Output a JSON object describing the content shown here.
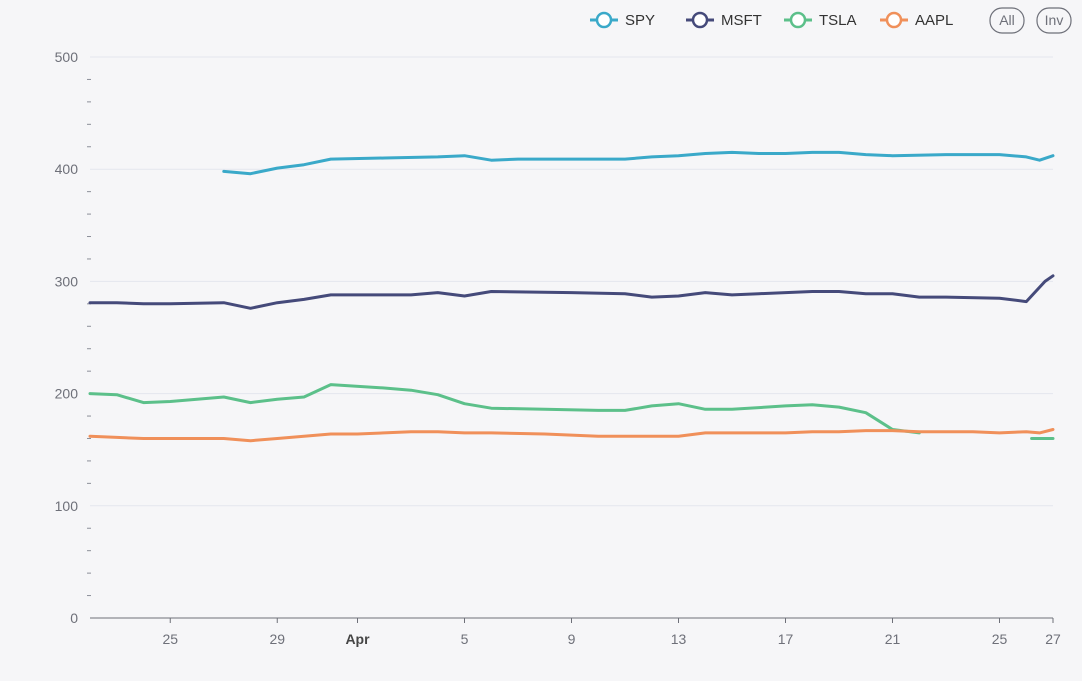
{
  "chart_data": {
    "type": "line",
    "title": "",
    "xlabel": "",
    "ylabel": "",
    "ylim": [
      0,
      500
    ],
    "y_ticks": [
      0,
      100,
      200,
      300,
      400,
      500
    ],
    "x_ticks": [
      {
        "x": 3,
        "label": "25",
        "bold": false
      },
      {
        "x": 7,
        "label": "29",
        "bold": false
      },
      {
        "x": 10,
        "label": "Apr",
        "bold": true
      },
      {
        "x": 14,
        "label": "5",
        "bold": false
      },
      {
        "x": 18,
        "label": "9",
        "bold": false
      },
      {
        "x": 22,
        "label": "13",
        "bold": false
      },
      {
        "x": 26,
        "label": "17",
        "bold": false
      },
      {
        "x": 30,
        "label": "21",
        "bold": false
      },
      {
        "x": 34,
        "label": "25",
        "bold": false
      },
      {
        "x": 36,
        "label": "27",
        "bold": false
      }
    ],
    "xlim": [
      0,
      36
    ],
    "grid": true,
    "legend_position": "top-right",
    "legend_buttons": [
      "All",
      "Inv"
    ],
    "series": [
      {
        "name": "SPY",
        "color": "#3aa9c9",
        "points": [
          [
            5,
            398
          ],
          [
            6,
            396
          ],
          [
            7,
            401
          ],
          [
            8,
            404
          ],
          [
            9,
            409
          ],
          [
            11,
            410
          ],
          [
            13,
            411
          ],
          [
            14,
            412
          ],
          [
            15,
            408
          ],
          [
            16,
            409
          ],
          [
            19,
            409
          ],
          [
            20,
            409
          ],
          [
            21,
            411
          ],
          [
            22,
            412
          ],
          [
            23,
            414
          ],
          [
            24,
            415
          ],
          [
            25,
            414
          ],
          [
            26,
            414
          ],
          [
            27,
            415
          ],
          [
            28,
            415
          ],
          [
            29,
            413
          ],
          [
            30,
            412
          ],
          [
            32,
            413
          ],
          [
            34,
            413
          ],
          [
            35,
            411
          ],
          [
            35.5,
            408
          ],
          [
            36,
            412
          ]
        ]
      },
      {
        "name": "MSFT",
        "color": "#454a7a",
        "points": [
          [
            0,
            281
          ],
          [
            1,
            281
          ],
          [
            2,
            280
          ],
          [
            3,
            280
          ],
          [
            5,
            281
          ],
          [
            6,
            276
          ],
          [
            7,
            281
          ],
          [
            8,
            284
          ],
          [
            9,
            288
          ],
          [
            11,
            288
          ],
          [
            12,
            288
          ],
          [
            13,
            290
          ],
          [
            14,
            287
          ],
          [
            15,
            291
          ],
          [
            18,
            290
          ],
          [
            20,
            289
          ],
          [
            21,
            286
          ],
          [
            22,
            287
          ],
          [
            23,
            290
          ],
          [
            24,
            288
          ],
          [
            25,
            289
          ],
          [
            27,
            291
          ],
          [
            28,
            291
          ],
          [
            29,
            289
          ],
          [
            30,
            289
          ],
          [
            31,
            286
          ],
          [
            32,
            286
          ],
          [
            34,
            285
          ],
          [
            35,
            282
          ],
          [
            35.7,
            300
          ],
          [
            36,
            305
          ]
        ]
      },
      {
        "name": "TSLA",
        "color": "#5cc08a",
        "points": [
          [
            0,
            200
          ],
          [
            1,
            199
          ],
          [
            2,
            192
          ],
          [
            3,
            193
          ],
          [
            5,
            197
          ],
          [
            6,
            192
          ],
          [
            7,
            195
          ],
          [
            8,
            197
          ],
          [
            9,
            208
          ],
          [
            11,
            205
          ],
          [
            12,
            203
          ],
          [
            13,
            199
          ],
          [
            14,
            191
          ],
          [
            15,
            187
          ],
          [
            17,
            186
          ],
          [
            19,
            185
          ],
          [
            20,
            185
          ],
          [
            21,
            189
          ],
          [
            22,
            191
          ],
          [
            23,
            186
          ],
          [
            24,
            186
          ],
          [
            26,
            189
          ],
          [
            27,
            190
          ],
          [
            28,
            188
          ],
          [
            29,
            183
          ],
          [
            30,
            168
          ],
          [
            31,
            165
          ]
        ]
      },
      {
        "name": "TSLA-tail",
        "color": "#5cc08a",
        "points": [
          [
            35.2,
            160
          ],
          [
            36,
            160
          ]
        ]
      },
      {
        "name": "AAPL",
        "color": "#f0905a",
        "points": [
          [
            0,
            162
          ],
          [
            1,
            161
          ],
          [
            2,
            160
          ],
          [
            3,
            160
          ],
          [
            4,
            160
          ],
          [
            5,
            160
          ],
          [
            6,
            158
          ],
          [
            7,
            160
          ],
          [
            8,
            162
          ],
          [
            9,
            164
          ],
          [
            10,
            164
          ],
          [
            12,
            166
          ],
          [
            13,
            166
          ],
          [
            14,
            165
          ],
          [
            15,
            165
          ],
          [
            17,
            164
          ],
          [
            19,
            162
          ],
          [
            20,
            162
          ],
          [
            22,
            162
          ],
          [
            23,
            165
          ],
          [
            24,
            165
          ],
          [
            25,
            165
          ],
          [
            26,
            165
          ],
          [
            27,
            166
          ],
          [
            28,
            166
          ],
          [
            29,
            167
          ],
          [
            30,
            167
          ],
          [
            31,
            166
          ],
          [
            33,
            166
          ],
          [
            34,
            165
          ],
          [
            35,
            166
          ],
          [
            35.5,
            165
          ],
          [
            36,
            168
          ]
        ]
      }
    ]
  }
}
